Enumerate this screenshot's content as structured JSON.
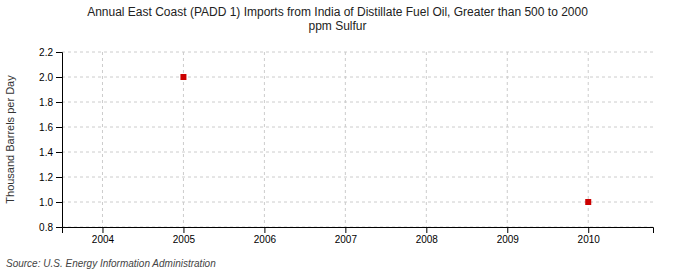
{
  "chart_data": {
    "type": "scatter",
    "title": "Annual East Coast (PADD 1) Imports from India of Distillate Fuel Oil, Greater than 500 to 2000\nppm Sulfur",
    "y_label": "Thousand Barrels per Day",
    "source": "Source: U.S. Energy Information Administration",
    "x": [
      2005,
      2010
    ],
    "values": [
      2.0,
      1.0
    ],
    "color": "#cc0000",
    "marker": "square",
    "xlim": [
      2003.5,
      2010.8
    ],
    "ylim": [
      0.8,
      2.2
    ],
    "xticks": [
      2004,
      2005,
      2006,
      2007,
      2008,
      2009,
      2010
    ],
    "yticks": [
      0.8,
      {
        "value": 1.0,
        "label": "1.0"
      },
      1.2,
      1.4,
      1.6,
      1.8,
      {
        "value": 2.0,
        "label": "2.0"
      },
      2.2
    ],
    "grid": true
  }
}
